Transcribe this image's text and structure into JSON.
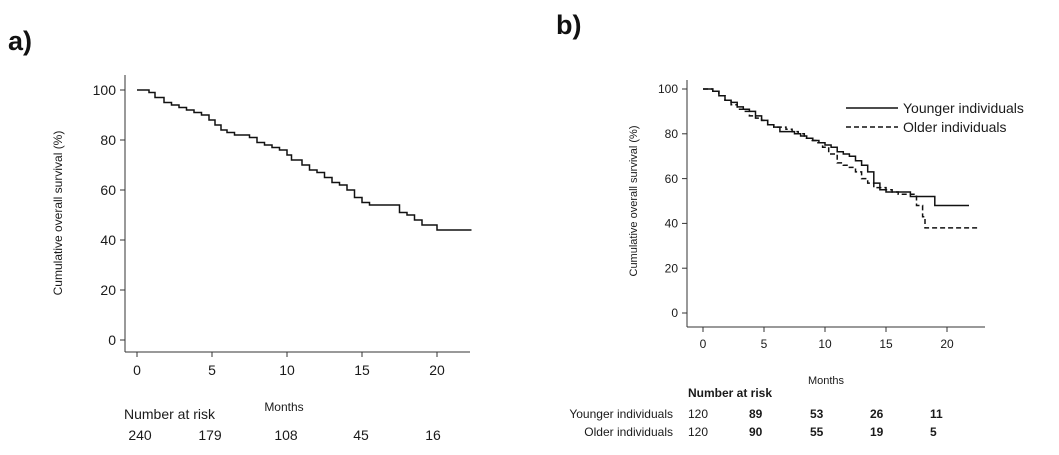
{
  "panels": [
    {
      "label": "a)"
    },
    {
      "label": "b)"
    }
  ],
  "chart_data": [
    {
      "type": "line",
      "title": "",
      "xlabel": "Months",
      "ylabel": "Cumulative overall survival (%)",
      "xlim": [
        0,
        22.5
      ],
      "ylim": [
        0,
        100
      ],
      "x_ticks": [
        0,
        5,
        10,
        15,
        20
      ],
      "y_ticks": [
        0,
        20,
        40,
        60,
        80,
        100
      ],
      "grid": false,
      "series": [
        {
          "style": "solid",
          "x": [
            0,
            0.8,
            1.2,
            1.8,
            2.3,
            2.8,
            3.3,
            3.8,
            4.3,
            4.8,
            5.2,
            5.6,
            6,
            6.5,
            7,
            7.5,
            8,
            8.5,
            9,
            9.5,
            10,
            10.3,
            11,
            11.5,
            12,
            12.5,
            13,
            13.5,
            14,
            14.5,
            15,
            15.5,
            16,
            17,
            17.5,
            18,
            18.5,
            19,
            19.5,
            20,
            22.3
          ],
          "y": [
            100,
            99,
            97,
            95,
            94,
            93,
            92,
            91,
            90,
            88,
            86,
            84,
            83,
            82,
            82,
            81,
            79,
            78,
            77,
            76,
            74,
            72,
            70,
            68,
            67,
            65,
            63,
            62,
            60,
            57,
            55,
            54,
            54,
            54,
            51,
            50,
            48,
            46,
            46,
            44,
            44
          ]
        }
      ],
      "risk_table": {
        "title": "Number at risk",
        "rows": [
          {
            "label": "",
            "values": [
              "240",
              "179",
              "108",
              "45",
              "16"
            ]
          }
        ]
      }
    },
    {
      "type": "line",
      "title": "",
      "xlabel": "Months",
      "ylabel": "Cumulative overall survival (%)",
      "xlim": [
        0,
        22.5
      ],
      "ylim": [
        0,
        100
      ],
      "x_ticks": [
        0,
        5,
        10,
        15,
        20
      ],
      "y_ticks": [
        0,
        20,
        40,
        60,
        80,
        100
      ],
      "grid": false,
      "legend_position": "top-right",
      "series": [
        {
          "name": "Younger individuals",
          "style": "solid",
          "x": [
            0,
            0.8,
            1.3,
            1.8,
            2.3,
            2.8,
            3.3,
            3.8,
            4.3,
            4.8,
            5.3,
            5.8,
            6.3,
            7,
            7.5,
            8,
            8.5,
            9,
            9.5,
            10,
            10.5,
            11,
            11.5,
            12,
            12.5,
            13,
            13.5,
            14,
            14.5,
            15,
            15.5,
            16,
            16.5,
            17,
            18,
            18.5,
            19,
            21.8
          ],
          "y": [
            100,
            99,
            97,
            95,
            94,
            92,
            91,
            90,
            88,
            86,
            84,
            83,
            81,
            81,
            80,
            79,
            78,
            77,
            76,
            75,
            74,
            72,
            71,
            70,
            68,
            66,
            63,
            58,
            55,
            54,
            54,
            54,
            54,
            52,
            52,
            52,
            48,
            48
          ]
        },
        {
          "name": "Older individuals",
          "style": "dashed",
          "x": [
            0,
            0.8,
            1.3,
            1.8,
            2.3,
            2.8,
            3.3,
            3.8,
            4.3,
            4.8,
            5.3,
            5.8,
            6.3,
            6.8,
            7.3,
            7.8,
            8.3,
            8.8,
            9.3,
            9.8,
            10.3,
            11,
            11.5,
            12,
            12.5,
            13,
            13.5,
            14,
            15,
            15.5,
            16,
            17,
            17.5,
            18,
            18.2,
            22.5
          ],
          "y": [
            100,
            99,
            97,
            95,
            93,
            91,
            90,
            88,
            87,
            86,
            84,
            83,
            83,
            82,
            81,
            80,
            78,
            77,
            76,
            74,
            71,
            67,
            66,
            65,
            63,
            60,
            58,
            56,
            55,
            54,
            53,
            53,
            48,
            43,
            38,
            38
          ]
        }
      ],
      "risk_table": {
        "title": "Number at risk",
        "rows": [
          {
            "label": "Younger individuals",
            "values": [
              "120",
              "89",
              "53",
              "26",
              "11"
            ]
          },
          {
            "label": "Older individuals",
            "values": [
              "120",
              "90",
              "55",
              "19",
              "5"
            ]
          }
        ]
      }
    }
  ]
}
